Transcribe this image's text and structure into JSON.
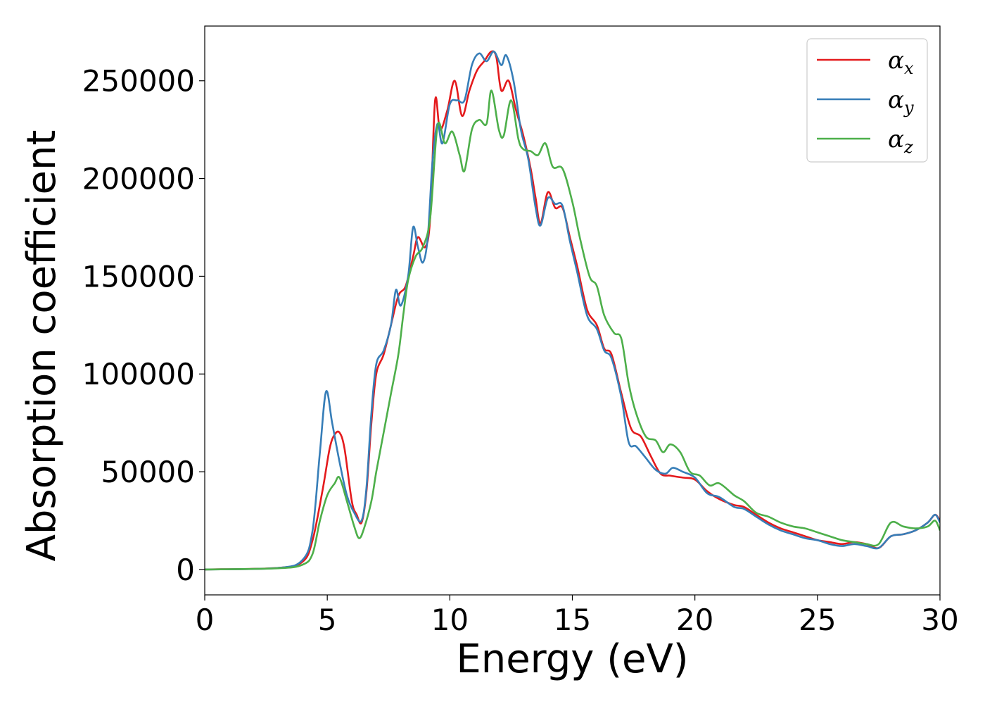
{
  "chart_data": {
    "type": "line",
    "title": "",
    "xlabel": "Energy (eV)",
    "ylabel": "Absorption coefficient",
    "xlim": [
      0,
      30
    ],
    "ylim": [
      -13000,
      278000
    ],
    "xticks": [
      0,
      5,
      10,
      15,
      20,
      25,
      30
    ],
    "yticks": [
      0,
      50000,
      100000,
      150000,
      200000,
      250000
    ],
    "grid": false,
    "legend_position": "top-right",
    "series": [
      {
        "name": "αx",
        "base": "α",
        "sub": "x",
        "color": "#e41a1c",
        "points": [
          [
            0,
            0
          ],
          [
            3,
            800
          ],
          [
            4,
            4000
          ],
          [
            4.4,
            15000
          ],
          [
            4.8,
            40000
          ],
          [
            5.1,
            62000
          ],
          [
            5.3,
            69000
          ],
          [
            5.5,
            70000
          ],
          [
            5.7,
            62000
          ],
          [
            6.0,
            35000
          ],
          [
            6.2,
            28000
          ],
          [
            6.4,
            24000
          ],
          [
            6.6,
            40000
          ],
          [
            6.8,
            75000
          ],
          [
            7.0,
            100000
          ],
          [
            7.3,
            110000
          ],
          [
            7.6,
            125000
          ],
          [
            7.9,
            140000
          ],
          [
            8.2,
            145000
          ],
          [
            8.5,
            160000
          ],
          [
            8.7,
            170000
          ],
          [
            9.0,
            165000
          ],
          [
            9.2,
            180000
          ],
          [
            9.4,
            240000
          ],
          [
            9.6,
            225000
          ],
          [
            9.9,
            235000
          ],
          [
            10.2,
            250000
          ],
          [
            10.5,
            232000
          ],
          [
            10.8,
            245000
          ],
          [
            11.1,
            255000
          ],
          [
            11.4,
            260000
          ],
          [
            11.7,
            265000
          ],
          [
            11.9,
            262000
          ],
          [
            12.1,
            245000
          ],
          [
            12.4,
            250000
          ],
          [
            12.7,
            235000
          ],
          [
            13.0,
            222000
          ],
          [
            13.3,
            205000
          ],
          [
            13.5,
            190000
          ],
          [
            13.7,
            177000
          ],
          [
            14.0,
            193000
          ],
          [
            14.3,
            185000
          ],
          [
            14.6,
            185000
          ],
          [
            14.9,
            170000
          ],
          [
            15.2,
            155000
          ],
          [
            15.6,
            133000
          ],
          [
            16.0,
            125000
          ],
          [
            16.3,
            113000
          ],
          [
            16.6,
            110000
          ],
          [
            17.0,
            90000
          ],
          [
            17.4,
            72000
          ],
          [
            17.8,
            68000
          ],
          [
            18.2,
            58000
          ],
          [
            18.6,
            49000
          ],
          [
            19.0,
            48000
          ],
          [
            19.5,
            47000
          ],
          [
            20.0,
            46000
          ],
          [
            20.5,
            40000
          ],
          [
            21.0,
            36000
          ],
          [
            21.6,
            33000
          ],
          [
            22.0,
            32000
          ],
          [
            22.5,
            28000
          ],
          [
            23.0,
            24000
          ],
          [
            23.5,
            21000
          ],
          [
            24.0,
            19000
          ],
          [
            24.5,
            17000
          ],
          [
            25.0,
            15000
          ],
          [
            25.5,
            14000
          ],
          [
            26.0,
            13000
          ],
          [
            26.5,
            14000
          ],
          [
            27.0,
            13000
          ],
          [
            27.5,
            11000
          ],
          [
            28.0,
            17000
          ],
          [
            28.5,
            18000
          ],
          [
            29.0,
            20000
          ],
          [
            29.5,
            24000
          ],
          [
            29.8,
            28000
          ],
          [
            30,
            25000
          ]
        ]
      },
      {
        "name": "αy",
        "base": "α",
        "sub": "y",
        "color": "#377eb8",
        "points": [
          [
            0,
            0
          ],
          [
            3,
            800
          ],
          [
            4,
            5000
          ],
          [
            4.4,
            20000
          ],
          [
            4.7,
            60000
          ],
          [
            4.95,
            91000
          ],
          [
            5.2,
            75000
          ],
          [
            5.5,
            55000
          ],
          [
            5.8,
            38000
          ],
          [
            6.1,
            29000
          ],
          [
            6.4,
            25000
          ],
          [
            6.6,
            42000
          ],
          [
            6.8,
            80000
          ],
          [
            7.0,
            105000
          ],
          [
            7.3,
            112000
          ],
          [
            7.6,
            125000
          ],
          [
            7.8,
            143000
          ],
          [
            8.0,
            135000
          ],
          [
            8.3,
            150000
          ],
          [
            8.5,
            175000
          ],
          [
            8.7,
            165000
          ],
          [
            8.9,
            157000
          ],
          [
            9.1,
            170000
          ],
          [
            9.3,
            210000
          ],
          [
            9.5,
            228000
          ],
          [
            9.7,
            218000
          ],
          [
            10.0,
            238000
          ],
          [
            10.3,
            240000
          ],
          [
            10.6,
            240000
          ],
          [
            10.9,
            258000
          ],
          [
            11.2,
            264000
          ],
          [
            11.5,
            260000
          ],
          [
            11.8,
            265000
          ],
          [
            12.1,
            258000
          ],
          [
            12.3,
            263000
          ],
          [
            12.6,
            250000
          ],
          [
            12.9,
            225000
          ],
          [
            13.2,
            210000
          ],
          [
            13.5,
            185000
          ],
          [
            13.7,
            176000
          ],
          [
            14.0,
            190000
          ],
          [
            14.3,
            187000
          ],
          [
            14.6,
            186000
          ],
          [
            14.9,
            168000
          ],
          [
            15.2,
            152000
          ],
          [
            15.6,
            130000
          ],
          [
            16.0,
            123000
          ],
          [
            16.3,
            112000
          ],
          [
            16.6,
            108000
          ],
          [
            17.0,
            88000
          ],
          [
            17.3,
            65000
          ],
          [
            17.6,
            63000
          ],
          [
            18.0,
            57000
          ],
          [
            18.4,
            51000
          ],
          [
            18.8,
            49000
          ],
          [
            19.1,
            52000
          ],
          [
            19.5,
            50000
          ],
          [
            20.0,
            47000
          ],
          [
            20.5,
            39000
          ],
          [
            21.0,
            37000
          ],
          [
            21.6,
            32000
          ],
          [
            22.0,
            31000
          ],
          [
            22.5,
            27000
          ],
          [
            23.0,
            23000
          ],
          [
            23.5,
            20000
          ],
          [
            24.0,
            18000
          ],
          [
            24.5,
            16000
          ],
          [
            25.0,
            15000
          ],
          [
            25.5,
            13000
          ],
          [
            26.0,
            12000
          ],
          [
            26.5,
            13000
          ],
          [
            27.0,
            12000
          ],
          [
            27.5,
            11000
          ],
          [
            28.0,
            17000
          ],
          [
            28.5,
            18000
          ],
          [
            29.0,
            20000
          ],
          [
            29.5,
            24000
          ],
          [
            29.8,
            28000
          ],
          [
            30,
            24000
          ]
        ]
      },
      {
        "name": "αz",
        "base": "α",
        "sub": "z",
        "color": "#4daf4a",
        "points": [
          [
            0,
            0
          ],
          [
            3,
            600
          ],
          [
            4,
            2500
          ],
          [
            4.4,
            8000
          ],
          [
            4.7,
            25000
          ],
          [
            5.0,
            38000
          ],
          [
            5.3,
            44000
          ],
          [
            5.5,
            47000
          ],
          [
            5.8,
            35000
          ],
          [
            6.1,
            22000
          ],
          [
            6.3,
            16000
          ],
          [
            6.5,
            21000
          ],
          [
            6.8,
            35000
          ],
          [
            7.0,
            50000
          ],
          [
            7.3,
            70000
          ],
          [
            7.6,
            90000
          ],
          [
            7.9,
            110000
          ],
          [
            8.1,
            130000
          ],
          [
            8.3,
            148000
          ],
          [
            8.6,
            160000
          ],
          [
            8.9,
            165000
          ],
          [
            9.2,
            180000
          ],
          [
            9.5,
            227000
          ],
          [
            9.8,
            218000
          ],
          [
            10.1,
            224000
          ],
          [
            10.4,
            212000
          ],
          [
            10.6,
            204000
          ],
          [
            10.9,
            225000
          ],
          [
            11.2,
            230000
          ],
          [
            11.5,
            228000
          ],
          [
            11.7,
            245000
          ],
          [
            12.0,
            225000
          ],
          [
            12.2,
            222000
          ],
          [
            12.5,
            240000
          ],
          [
            12.8,
            220000
          ],
          [
            13.0,
            215000
          ],
          [
            13.3,
            214000
          ],
          [
            13.6,
            212000
          ],
          [
            13.9,
            218000
          ],
          [
            14.2,
            206000
          ],
          [
            14.6,
            205000
          ],
          [
            15.0,
            188000
          ],
          [
            15.3,
            170000
          ],
          [
            15.7,
            150000
          ],
          [
            16.0,
            145000
          ],
          [
            16.3,
            130000
          ],
          [
            16.7,
            121000
          ],
          [
            17.0,
            118000
          ],
          [
            17.3,
            95000
          ],
          [
            17.6,
            80000
          ],
          [
            18.0,
            68000
          ],
          [
            18.4,
            66000
          ],
          [
            18.7,
            60000
          ],
          [
            19.0,
            64000
          ],
          [
            19.4,
            60000
          ],
          [
            19.8,
            50000
          ],
          [
            20.2,
            48000
          ],
          [
            20.6,
            43000
          ],
          [
            21.0,
            44000
          ],
          [
            21.6,
            38000
          ],
          [
            22.0,
            35000
          ],
          [
            22.5,
            29000
          ],
          [
            23.0,
            27000
          ],
          [
            23.5,
            24000
          ],
          [
            24.0,
            22000
          ],
          [
            24.5,
            21000
          ],
          [
            25.0,
            19000
          ],
          [
            25.5,
            17000
          ],
          [
            26.0,
            15000
          ],
          [
            26.5,
            14000
          ],
          [
            27.0,
            13000
          ],
          [
            27.5,
            13000
          ],
          [
            28.0,
            24000
          ],
          [
            28.5,
            22000
          ],
          [
            29.0,
            21000
          ],
          [
            29.5,
            22000
          ],
          [
            29.8,
            25000
          ],
          [
            30,
            20000
          ]
        ]
      }
    ]
  }
}
